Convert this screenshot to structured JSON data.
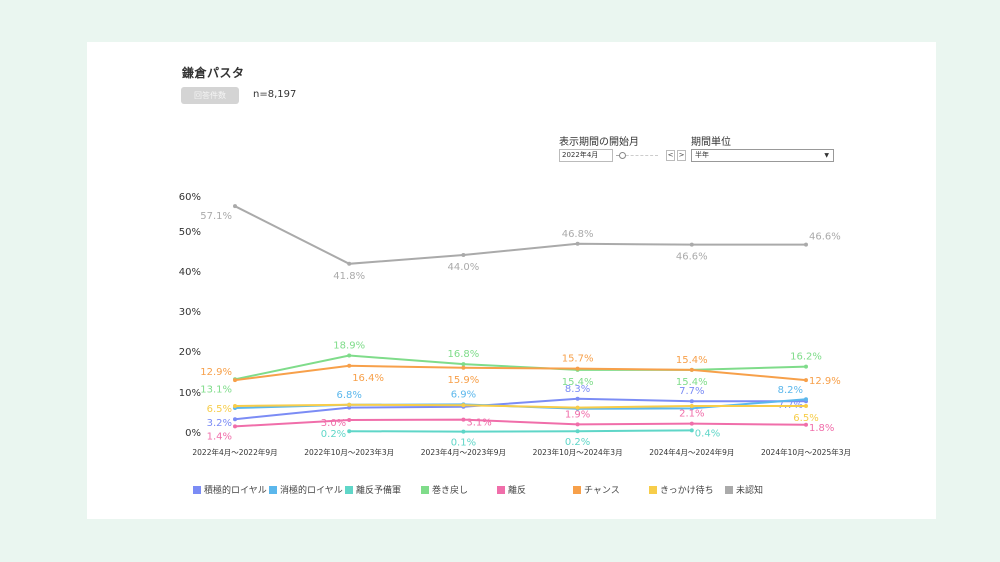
{
  "header": {
    "title": "鎌倉パスタ",
    "count_badge": "回答件数",
    "count_value": "n=8,197"
  },
  "controls": {
    "start_month_label": "表示期間の開始月",
    "start_month_value": "2022年4月",
    "slider_position": 0.15,
    "prev_label": "<",
    "next_label": ">",
    "period_unit_label": "期間単位",
    "period_unit_value": "半年",
    "dropdown_arrow": "▼"
  },
  "chart_data": {
    "type": "line",
    "title": "",
    "xlabel": "",
    "ylabel": "",
    "ylim": [
      0,
      60
    ],
    "yticks": [
      0,
      10,
      20,
      30,
      40,
      50,
      60
    ],
    "ytick_labels": [
      "0%",
      "10%",
      "20%",
      "30%",
      "40%",
      "50%",
      "60%"
    ],
    "grid": false,
    "legend_position": "bottom",
    "categories": [
      "2022年4月～2022年9月",
      "2022年10月～2023年3月",
      "2023年4月～2023年9月",
      "2023年10月～2024年3月",
      "2024年4月～2024年9月",
      "2024年10月～2025年3月"
    ],
    "series": [
      {
        "name": "積極的ロイヤル",
        "color": "#7b8cf5",
        "values": [
          3.2,
          6.1,
          6.3,
          8.3,
          7.7,
          7.7
        ],
        "labels": [
          "3.2%",
          null,
          null,
          "8.3%",
          "7.7%",
          "7.7%"
        ]
      },
      {
        "name": "消極的ロイヤル",
        "color": "#5bb7ec",
        "values": [
          6.0,
          6.8,
          6.9,
          5.8,
          5.9,
          8.2
        ],
        "labels": [
          null,
          "6.8%",
          "6.9%",
          null,
          null,
          "8.2%"
        ]
      },
      {
        "name": "離反予備軍",
        "color": "#5fd6c8",
        "values": [
          null,
          0.2,
          0.1,
          0.2,
          0.4,
          null
        ],
        "labels": [
          null,
          "0.2%",
          "0.1%",
          "0.2%",
          "0.4%",
          null
        ]
      },
      {
        "name": "巻き戻し",
        "color": "#7fdc8a",
        "values": [
          13.1,
          18.9,
          16.8,
          15.4,
          15.4,
          16.2
        ],
        "labels": [
          "13.1%",
          "18.9%",
          "16.8%",
          "15.4%",
          "15.4%",
          "16.2%"
        ]
      },
      {
        "name": "離反",
        "color": "#f06eaa",
        "values": [
          1.4,
          3.0,
          3.1,
          1.9,
          2.1,
          1.8
        ],
        "labels": [
          "1.4%",
          "3.0%",
          "3.1%",
          "1.9%",
          "2.1%",
          "1.8%"
        ]
      },
      {
        "name": "チャンス",
        "color": "#f7a04a",
        "values": [
          12.9,
          16.4,
          15.9,
          15.7,
          15.4,
          12.9
        ],
        "labels": [
          "12.9%",
          "16.4%",
          "15.9%",
          "15.7%",
          "15.4%",
          "12.9%"
        ]
      },
      {
        "name": "きっかけ待ち",
        "color": "#f7cd4a",
        "values": [
          6.5,
          6.8,
          6.7,
          6.1,
          6.5,
          6.5
        ],
        "labels": [
          "6.5%",
          null,
          null,
          null,
          null,
          "6.5%"
        ]
      },
      {
        "name": "未認知",
        "color": "#aaaaaa",
        "values": [
          57.1,
          41.8,
          44.0,
          46.8,
          46.6,
          46.6
        ],
        "labels": [
          "57.1%",
          "41.8%",
          "44.0%",
          "46.8%",
          "46.6%",
          "46.6%"
        ]
      }
    ]
  }
}
